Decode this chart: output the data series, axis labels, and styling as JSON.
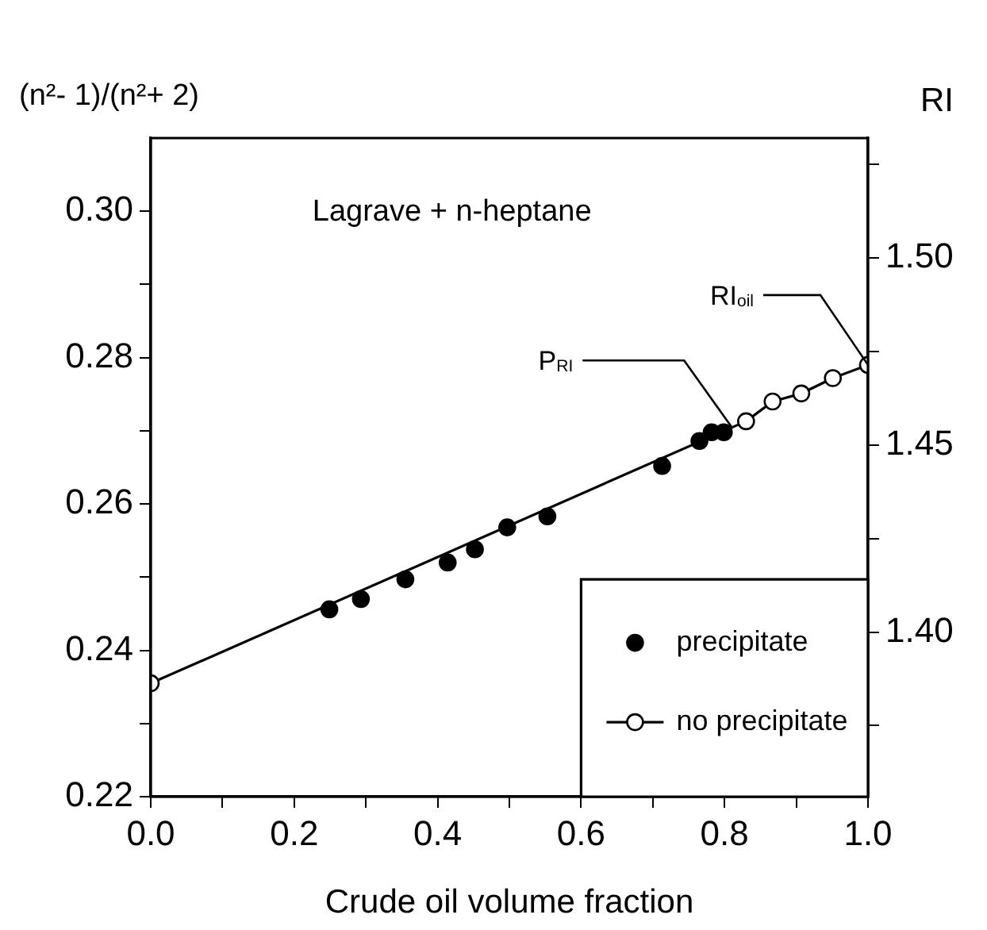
{
  "chart_data": {
    "type": "scatter",
    "xlabel": "Crude oil volume fraction",
    "ylabel": "(n²- 1)/(n²+ 2)",
    "y2label": "RI",
    "xlim": [
      0,
      1
    ],
    "xticks": [
      {
        "value": 0,
        "label": "0.0"
      },
      {
        "value": 0.1,
        "label": null
      },
      0.2,
      {
        "value": 0.3,
        "label": null
      },
      0.4,
      {
        "value": 0.5,
        "label": null
      },
      0.6,
      {
        "value": 0.7,
        "label": null
      },
      0.8,
      {
        "value": 0.9,
        "label": null
      },
      {
        "value": 1,
        "label": "1.0"
      }
    ],
    "ylim": [
      0.22,
      0.31
    ],
    "yticks": [
      0.22,
      {
        "value": 0.23,
        "label": null
      },
      0.24,
      {
        "value": 0.25,
        "label": null
      },
      0.26,
      {
        "value": 0.27,
        "label": null
      },
      0.28,
      {
        "value": 0.29,
        "label": null
      },
      {
        "value": 0.3,
        "label": "0.30"
      }
    ],
    "y2lim": [
      1.356,
      1.532
    ],
    "y2ticks": [
      {
        "value": 1.375,
        "label": null
      },
      {
        "value": 1.4,
        "label": "1.40"
      },
      {
        "value": 1.425,
        "label": null
      },
      1.45,
      {
        "value": 1.475,
        "label": null
      },
      {
        "value": 1.5,
        "label": "1.50"
      },
      {
        "value": 1.525,
        "label": null
      }
    ],
    "marker": "circle",
    "legend": "bottom right",
    "grid": false,
    "series": [
      {
        "name": "precipitate",
        "type": "scatter",
        "color": "#000000",
        "x": [
          0.249,
          0.293,
          0.355,
          0.414,
          0.452,
          0.497,
          0.553,
          0.713,
          0.765,
          0.782,
          0.799
        ],
        "values": [
          0.2456,
          0.247,
          0.2497,
          0.252,
          0.2538,
          0.2568,
          0.2583,
          0.2652,
          0.2686,
          0.2698,
          0.2698
        ]
      },
      {
        "name": "no precipitate",
        "type": "line",
        "color": "#000000",
        "x": [
          0,
          0.83,
          0.867,
          0.907,
          0.951,
          1
        ],
        "values": [
          0.2355,
          0.2713,
          0.274,
          0.2751,
          0.2772,
          0.279
        ]
      }
    ],
    "annotations": [
      "Lagrave + n-heptane",
      {
        "text": "P$_{RI}$",
        "x": 0.81,
        "y": 0.2705
      },
      {
        "text": "RI$_{oil}$",
        "x": 1,
        "y": 0.279
      }
    ]
  }
}
